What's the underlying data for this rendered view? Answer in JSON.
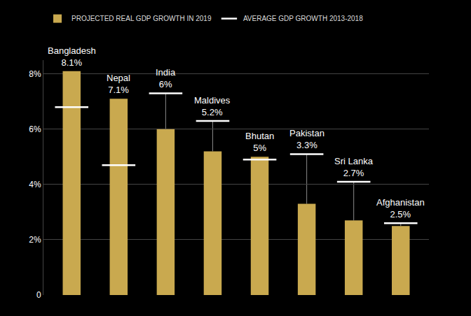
{
  "chart_data": {
    "type": "bar",
    "categories": [
      "Bangladesh",
      "Nepal",
      "India",
      "Maldives",
      "Bhutan",
      "Pakistan",
      "Sri Lanka",
      "Afghanistan"
    ],
    "series": [
      {
        "name": "PROJECTED REAL GDP GROWTH IN 2019",
        "type": "bar",
        "color": "#c9a94f",
        "values": [
          8.1,
          7.1,
          6,
          5.2,
          5,
          3.3,
          2.7,
          2.5
        ],
        "value_labels": [
          "8.1%",
          "7.1%",
          "6%",
          "5.2%",
          "5%",
          "3.3%",
          "2.7%",
          "2.5%"
        ]
      },
      {
        "name": "AVERAGE GDP GROWTH 2013-2018",
        "type": "scatter",
        "color": "#ffffff",
        "marker": "line",
        "values": [
          6.8,
          4.7,
          7.3,
          6.3,
          4.9,
          5.1,
          4.1,
          2.6
        ]
      }
    ],
    "ylim": [
      0,
      8.5
    ],
    "yticks": [
      0,
      {
        "value": 2,
        "label": "2%"
      },
      {
        "value": 4,
        "label": "4%"
      },
      {
        "value": 6,
        "label": "6%"
      },
      {
        "value": 8,
        "label": "8%"
      }
    ],
    "grid": true,
    "data_labels": true,
    "tick_labels": "y",
    "legend": "top"
  }
}
